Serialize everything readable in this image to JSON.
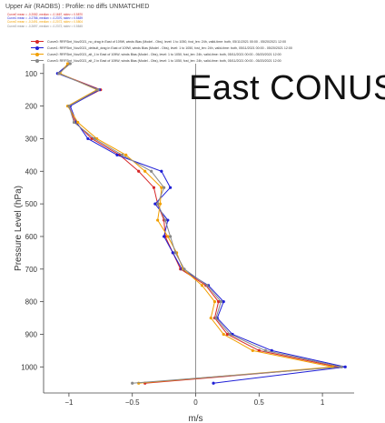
{
  "page": {
    "title": "Upper Air (RAOBS) : Profile: no diffs UNMATCHED",
    "overlay_label": "East CONUS"
  },
  "stats": [
    {
      "text": "Curve0 mean = -0.2082, median = -0.1667, stdev = 0.5870",
      "color": "#d62728"
    },
    {
      "text": "Curve1 mean = -0.2786, median = -0.2370, stdev = 0.5839",
      "color": "#1f1fd6"
    },
    {
      "text": "Curve2 mean = -0.2491, median = -0.2072, stdev = 0.5804",
      "color": "#f2a000"
    },
    {
      "text": "Curve3 mean = -0.2697, median = -0.2372, stdev = 0.5845",
      "color": "#888888"
    }
  ],
  "chart_data": {
    "type": "line",
    "orientation": "vertical-profile",
    "xlabel": "m/s",
    "ylabel": "Pressure Level (hPa)",
    "xlim": [
      -1.2,
      1.25
    ],
    "ylim": [
      1080,
      70
    ],
    "y_inverted": true,
    "x_ticks": [
      -1,
      -0.5,
      0,
      0.5,
      1
    ],
    "x_tick_labels": [
      "−1",
      "−0.5",
      "0",
      "0.5",
      "1"
    ],
    "y_ticks": [
      100,
      200,
      300,
      400,
      500,
      600,
      700,
      800,
      900,
      1000
    ],
    "y_tick_labels": [
      "100",
      "200",
      "300",
      "400",
      "500",
      "600",
      "700",
      "800",
      "900",
      "1000"
    ],
    "zero_line": true,
    "grid": false,
    "legend_position": "top",
    "series": [
      {
        "name": "Curve0: RRFSint_Nov2021_no_drag in East of 109W, winds Bias (Model - Obs), level: 1 to 1050, fcst_len: 24h, valid-time: both, 05/11/2021 00:00 - 05/20/2021 12:00",
        "color": "#d62728",
        "points": [
          [
            -1.0,
            70
          ],
          [
            -1.08,
            100
          ],
          [
            -0.75,
            150
          ],
          [
            -1.0,
            200
          ],
          [
            -0.95,
            250
          ],
          [
            -0.82,
            300
          ],
          [
            -0.6,
            350
          ],
          [
            -0.45,
            400
          ],
          [
            -0.33,
            450
          ],
          [
            -0.3,
            500
          ],
          [
            -0.25,
            550
          ],
          [
            -0.24,
            600
          ],
          [
            -0.18,
            650
          ],
          [
            -0.12,
            700
          ],
          [
            0.08,
            750
          ],
          [
            0.18,
            800
          ],
          [
            0.15,
            850
          ],
          [
            0.25,
            900
          ],
          [
            0.5,
            950
          ],
          [
            1.12,
            1000
          ],
          [
            -0.4,
            1050
          ]
        ]
      },
      {
        "name": "Curve1: RRFSint_Nov2021_default_drag in East of 109W, winds Bias (Model - Obs), level: 1 to 1050, fcst_len: 24h, valid-time: both, 05/11/2021 00:00 - 05/20/2021 12:00",
        "color": "#1f1fd6",
        "points": [
          [
            -1.0,
            70
          ],
          [
            -1.09,
            100
          ],
          [
            -0.76,
            150
          ],
          [
            -0.99,
            200
          ],
          [
            -0.94,
            250
          ],
          [
            -0.85,
            300
          ],
          [
            -0.62,
            350
          ],
          [
            -0.27,
            400
          ],
          [
            -0.2,
            450
          ],
          [
            -0.32,
            500
          ],
          [
            -0.22,
            550
          ],
          [
            -0.25,
            600
          ],
          [
            -0.18,
            650
          ],
          [
            -0.11,
            700
          ],
          [
            0.1,
            750
          ],
          [
            0.22,
            800
          ],
          [
            0.17,
            850
          ],
          [
            0.29,
            900
          ],
          [
            0.6,
            950
          ],
          [
            1.18,
            1000
          ],
          [
            0.14,
            1050
          ]
        ]
      },
      {
        "name": "Curve2: RRFSint_Nov2021_alt_1 in East of 109W, winds Bias (Model - Obs), level: 1 to 1050, fcst_len: 24h, valid-time: both, 05/11/2021 00:00 - 05/20/2021 12:00",
        "color": "#f2a000",
        "points": [
          [
            -1.01,
            70
          ],
          [
            -1.07,
            100
          ],
          [
            -0.78,
            150
          ],
          [
            -1.01,
            200
          ],
          [
            -0.93,
            250
          ],
          [
            -0.78,
            300
          ],
          [
            -0.55,
            350
          ],
          [
            -0.4,
            400
          ],
          [
            -0.27,
            450
          ],
          [
            -0.28,
            500
          ],
          [
            -0.3,
            550
          ],
          [
            -0.22,
            600
          ],
          [
            -0.15,
            650
          ],
          [
            -0.1,
            700
          ],
          [
            0.05,
            750
          ],
          [
            0.15,
            800
          ],
          [
            0.12,
            850
          ],
          [
            0.22,
            900
          ],
          [
            0.45,
            950
          ],
          [
            1.08,
            1000
          ],
          [
            -0.45,
            1050
          ]
        ]
      },
      {
        "name": "Curve3: RRFSint_Nov2021_alt_2 in East of 109W, winds Bias (Model - Obs), level: 1 to 1050, fcst_len: 24h, valid-time: both, 05/11/2021 00:00 - 05/20/2021 12:00",
        "color": "#888888",
        "points": [
          [
            -0.99,
            70
          ],
          [
            -1.08,
            100
          ],
          [
            -0.77,
            150
          ],
          [
            -1.0,
            200
          ],
          [
            -0.96,
            250
          ],
          [
            -0.8,
            300
          ],
          [
            -0.58,
            350
          ],
          [
            -0.35,
            400
          ],
          [
            -0.25,
            450
          ],
          [
            -0.3,
            500
          ],
          [
            -0.24,
            550
          ],
          [
            -0.2,
            600
          ],
          [
            -0.16,
            650
          ],
          [
            -0.09,
            700
          ],
          [
            0.09,
            750
          ],
          [
            0.2,
            800
          ],
          [
            0.16,
            850
          ],
          [
            0.27,
            900
          ],
          [
            0.55,
            950
          ],
          [
            1.15,
            1000
          ],
          [
            -0.5,
            1050
          ]
        ]
      }
    ]
  }
}
